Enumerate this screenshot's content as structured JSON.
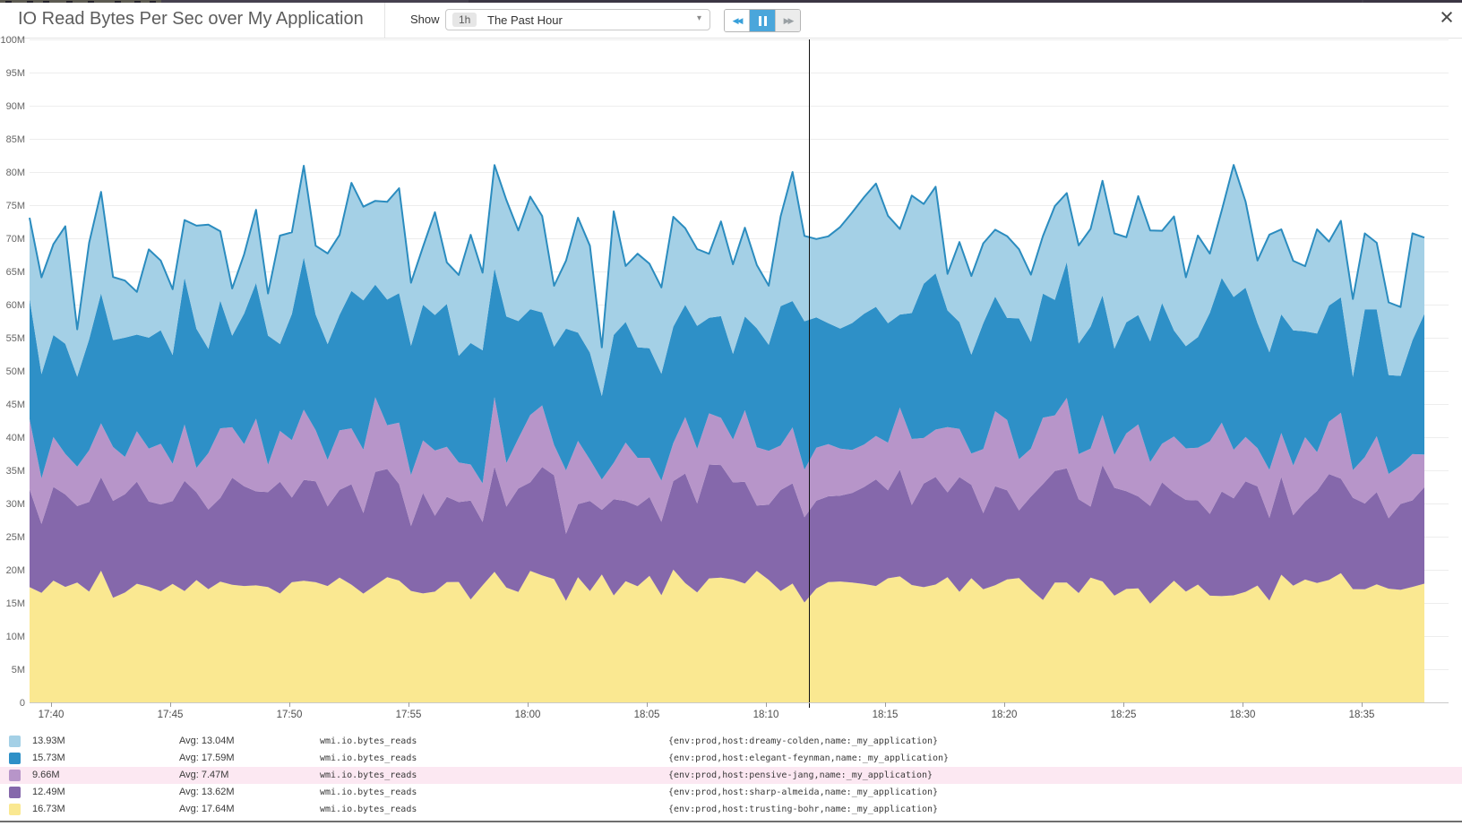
{
  "header": {
    "title": "IO Read Bytes Per Sec over My Application",
    "show_label": "Show",
    "timeframe_badge": "1h",
    "timeframe_value": "The Past Hour"
  },
  "icons": {
    "rewind": "◀◀",
    "forward": "▶▶",
    "dropdown_caret": "▾",
    "close": "×"
  },
  "chart_data": {
    "type": "area",
    "stacked": true,
    "title": "IO Read Bytes Per Sec over My Application",
    "unit": "bytes per sec",
    "ylim_m": [
      0,
      100
    ],
    "y_ticks": [
      "0",
      "5M",
      "10M",
      "15M",
      "20M",
      "25M",
      "30M",
      "35M",
      "40M",
      "45M",
      "50M",
      "55M",
      "60M",
      "65M",
      "70M",
      "75M",
      "80M",
      "85M",
      "90M",
      "95M",
      "100M"
    ],
    "x_ticks": [
      "17:40",
      "17:45",
      "17:50",
      "17:55",
      "18:00",
      "18:05",
      "18:10",
      "18:15",
      "18:20",
      "18:25",
      "18:30",
      "18:35"
    ],
    "grid": true,
    "legend_position": "bottom",
    "points_per_series": 118,
    "series": [
      {
        "name": "dreamy-colden",
        "metric": "wmi.io.bytes_reads",
        "scope": "{env:prod,host:dreamy-colden,name:_my_application}",
        "color": "#a4d0e6",
        "stroke": "#2b8cbf",
        "current": "13.93M",
        "avg_label": "Avg: 13.04M",
        "approx_mean_m": 13.04,
        "approx_range_m": 8.5,
        "seed": 101,
        "highlighted": false
      },
      {
        "name": "elegant-feynman",
        "metric": "wmi.io.bytes_reads",
        "scope": "{env:prod,host:elegant-feynman,name:_my_application}",
        "color": "#2e90c7",
        "stroke": "",
        "current": "15.73M",
        "avg_label": "Avg: 17.59M",
        "approx_mean_m": 17.59,
        "approx_range_m": 6.5,
        "seed": 202,
        "highlighted": false
      },
      {
        "name": "pensive-jang",
        "metric": "wmi.io.bytes_reads",
        "scope": "{env:prod,host:pensive-jang,name:_my_application}",
        "color": "#b795c9",
        "stroke": "",
        "current": "9.66M",
        "avg_label": "Avg: 7.47M",
        "approx_mean_m": 7.47,
        "approx_range_m": 4.2,
        "seed": 303,
        "highlighted": true
      },
      {
        "name": "sharp-almeida",
        "metric": "wmi.io.bytes_reads",
        "scope": "{env:prod,host:sharp-almeida,name:_my_application}",
        "color": "#8568ab",
        "stroke": "",
        "current": "12.49M",
        "avg_label": "Avg: 13.62M",
        "approx_mean_m": 13.62,
        "approx_range_m": 4.6,
        "seed": 404,
        "highlighted": false
      },
      {
        "name": "trusting-bohr",
        "metric": "wmi.io.bytes_reads",
        "scope": "{env:prod,host:trusting-bohr,name:_my_application}",
        "color": "#fae891",
        "stroke": "",
        "current": "16.73M",
        "avg_label": "Avg: 17.64M",
        "approx_mean_m": 17.64,
        "approx_range_m": 3.0,
        "seed": 505,
        "highlighted": false
      }
    ]
  }
}
